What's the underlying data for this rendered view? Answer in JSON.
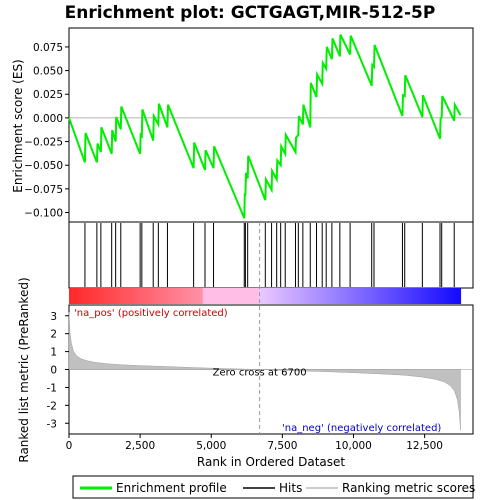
{
  "chart_data": {
    "type": "line",
    "title": "Enrichment plot: GCTGAGT,MIR-512-5P",
    "top_panel": {
      "ylabel": "Enrichment score (ES)",
      "ylim": [
        -0.11,
        0.095
      ],
      "yticks": [
        -0.1,
        -0.075,
        -0.05,
        -0.025,
        0.0,
        0.025,
        0.05,
        0.075
      ],
      "ytick_labels": [
        "−0.100",
        "−0.075",
        "−0.050",
        "−0.025",
        "0.000",
        "0.025",
        "0.050",
        "0.075"
      ],
      "series": [
        {
          "name": "Enrichment profile",
          "color": "#00ee00",
          "x": [
            0,
            560,
            580,
            980,
            1000,
            1120,
            1140,
            1500,
            1520,
            1640,
            1660,
            1820,
            1840,
            2500,
            2520,
            2560,
            2580,
            2960,
            2980,
            3140,
            3160,
            3460,
            3480,
            4380,
            4400,
            4780,
            4800,
            5080,
            5100,
            6160,
            6180,
            6200,
            6220,
            6280,
            6300,
            6900,
            6920,
            7120,
            7140,
            7300,
            7320,
            7440,
            7460,
            7600,
            7620,
            7960,
            7980,
            8060,
            8080,
            8220,
            8240,
            8480,
            8500,
            8700,
            8720,
            8900,
            8920,
            9040,
            9060,
            9240,
            9260,
            9520,
            9540,
            9880,
            9900,
            10640,
            10660,
            10720,
            10740,
            11720,
            11740,
            11800,
            11820,
            12420,
            12440,
            13040,
            13060,
            13100,
            13120,
            13540,
            13560,
            13760
          ],
          "y": [
            0.0,
            -0.047,
            -0.016,
            -0.047,
            -0.027,
            -0.036,
            -0.01,
            -0.038,
            -0.013,
            -0.025,
            0.001,
            -0.012,
            0.012,
            -0.038,
            -0.016,
            -0.021,
            0.009,
            -0.024,
            0.002,
            -0.007,
            0.015,
            -0.01,
            0.014,
            -0.053,
            -0.026,
            -0.055,
            -0.034,
            -0.053,
            -0.03,
            -0.106,
            -0.08,
            -0.082,
            -0.058,
            -0.064,
            -0.04,
            -0.087,
            -0.065,
            -0.076,
            -0.056,
            -0.065,
            -0.045,
            -0.05,
            -0.03,
            -0.038,
            -0.018,
            -0.036,
            -0.021,
            -0.018,
            0.002,
            -0.007,
            0.014,
            -0.01,
            0.037,
            0.022,
            0.046,
            0.036,
            0.058,
            0.052,
            0.075,
            0.062,
            0.084,
            0.065,
            0.088,
            0.067,
            0.087,
            0.034,
            0.056,
            0.054,
            0.077,
            0.002,
            0.024,
            0.023,
            0.045,
            0.001,
            0.024,
            -0.022,
            -0.001,
            0.001,
            0.023,
            -0.003,
            0.014,
            0.003
          ]
        }
      ]
    },
    "hits": {
      "name": "Hits",
      "positions": [
        560,
        980,
        1120,
        1500,
        1640,
        1820,
        2500,
        2560,
        2960,
        3140,
        3460,
        4380,
        4780,
        5080,
        6160,
        6200,
        6280,
        6900,
        7120,
        7300,
        7440,
        7600,
        7960,
        8060,
        8220,
        8480,
        8700,
        8900,
        9040,
        9240,
        9520,
        9880,
        10640,
        10720,
        11720,
        11800,
        12420,
        13040,
        13100,
        13540
      ]
    },
    "bottom_panel": {
      "name": "Ranking metric scores",
      "ylabel": "Ranked list metric (PreRanked)",
      "xlabel": "Rank in Ordered Dataset",
      "xlim": [
        0,
        14200
      ],
      "ylim": [
        -3.6,
        3.6
      ],
      "yticks": [
        -3,
        -2,
        -1,
        0,
        1,
        2,
        3
      ],
      "ytick_labels": [
        "-3",
        "-2",
        "-1",
        "0",
        "1",
        "2",
        "3"
      ],
      "xticks": [
        0,
        2500,
        5000,
        7500,
        10000,
        12500
      ],
      "xtick_labels": [
        "0",
        "2,500",
        "5,000",
        "7,500",
        "10,000",
        "12,500"
      ],
      "metric_x": [
        0,
        30,
        80,
        150,
        250,
        400,
        600,
        900,
        1300,
        1800,
        2500,
        3500,
        4500,
        5500,
        6700,
        8000,
        9000,
        10000,
        11000,
        11800,
        12400,
        12900,
        13200,
        13400,
        13550,
        13650,
        13720,
        13760
      ],
      "metric_y": [
        3.2,
        2.1,
        1.5,
        1.05,
        0.8,
        0.62,
        0.5,
        0.4,
        0.33,
        0.27,
        0.22,
        0.16,
        0.1,
        0.05,
        0.0,
        -0.07,
        -0.12,
        -0.18,
        -0.25,
        -0.32,
        -0.42,
        -0.55,
        -0.7,
        -0.9,
        -1.2,
        -1.7,
        -2.4,
        -3.4
      ],
      "zero_cross_x": 6700,
      "zero_cross_label": "Zero cross at 6700",
      "pos_label": "'na_pos' (positively correlated)",
      "neg_label": "'na_neg' (negatively correlated)"
    },
    "legend": {
      "placement": "bottom",
      "items": [
        {
          "label": "Enrichment profile",
          "color": "#00ee00"
        },
        {
          "label": "Hits",
          "color": "#000000"
        },
        {
          "label": "Ranking metric scores",
          "color": "#bbbbbb"
        }
      ]
    },
    "colors": {
      "profile": "#00ee00",
      "hits": "#000000",
      "metric_fill": "#c0c0c0",
      "pos_label": "#cc0000",
      "neg_label": "#0000cc",
      "band_pos": "#ff0000",
      "band_mid": "#ffaaff",
      "band_neg": "#0000ff"
    }
  }
}
